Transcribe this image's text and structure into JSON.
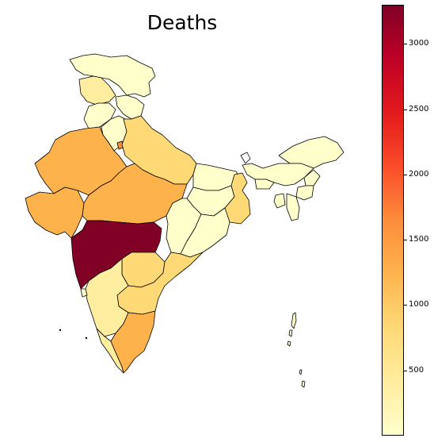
{
  "title": "Deaths",
  "colorbar": {
    "vmin": 0,
    "vmax": 3300,
    "ticks": [
      {
        "value": 500,
        "label": "500"
      },
      {
        "value": 1000,
        "label": "1000"
      },
      {
        "value": 1500,
        "label": "1500"
      },
      {
        "value": 2000,
        "label": "2000"
      },
      {
        "value": 2500,
        "label": "2500"
      },
      {
        "value": 3000,
        "label": "3000"
      }
    ]
  },
  "regions": [
    {
      "id": "jammu-kashmir",
      "color": "#ffffcc"
    },
    {
      "id": "himachal-pradesh",
      "color": "#ffeda0"
    },
    {
      "id": "punjab",
      "color": "#ffffcc"
    },
    {
      "id": "uttarakhand",
      "color": "#ffffcc"
    },
    {
      "id": "haryana",
      "color": "#ffffcc"
    },
    {
      "id": "delhi",
      "color": "#fd8d3c"
    },
    {
      "id": "rajasthan",
      "color": "#feb24c"
    },
    {
      "id": "uttar-pradesh",
      "color": "#fed976"
    },
    {
      "id": "gujarat",
      "color": "#feb24c"
    },
    {
      "id": "madhya-pradesh",
      "color": "#feb24c"
    },
    {
      "id": "bihar",
      "color": "#ffffcc"
    },
    {
      "id": "jharkhand",
      "color": "#ffffcc"
    },
    {
      "id": "west-bengal",
      "color": "#fed976"
    },
    {
      "id": "chhattisgarh",
      "color": "#ffffcc"
    },
    {
      "id": "odisha",
      "color": "#ffffcc"
    },
    {
      "id": "maharashtra",
      "color": "#800026"
    },
    {
      "id": "telangana",
      "color": "#fed976"
    },
    {
      "id": "andhra-pradesh",
      "color": "#fed976"
    },
    {
      "id": "karnataka",
      "color": "#ffeda0"
    },
    {
      "id": "goa",
      "color": "#ffffcc"
    },
    {
      "id": "kerala",
      "color": "#ffeda0"
    },
    {
      "id": "tamil-nadu",
      "color": "#feb24c"
    },
    {
      "id": "sikkim",
      "color": "#ffffff"
    },
    {
      "id": "arunachal-pradesh",
      "color": "#ffffcc"
    },
    {
      "id": "assam",
      "color": "#ffffcc"
    },
    {
      "id": "meghalaya",
      "color": "#ffffcc"
    },
    {
      "id": "nagaland",
      "color": "#ffffcc"
    },
    {
      "id": "manipur",
      "color": "#ffffcc"
    },
    {
      "id": "mizoram",
      "color": "#ffffcc"
    },
    {
      "id": "tripura",
      "color": "#ffffcc"
    },
    {
      "id": "andaman-nicobar",
      "color": "#ffffcc"
    }
  ]
}
